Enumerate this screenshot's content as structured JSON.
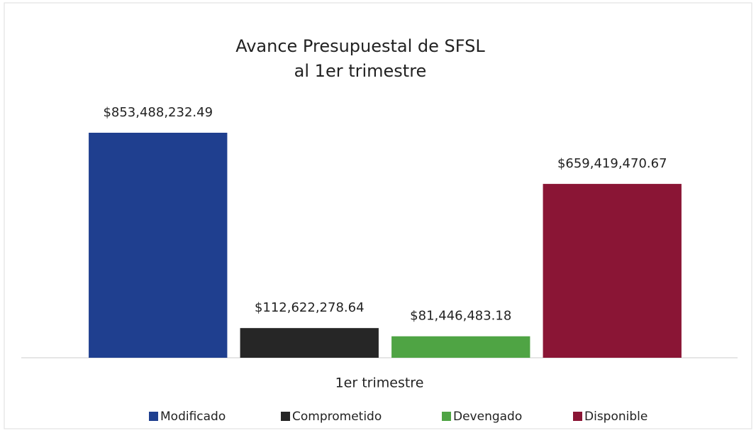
{
  "chart_data": {
    "type": "bar",
    "title": [
      "Avance Presupuestal de SFSL",
      "al 1er trimestre"
    ],
    "categories": [
      "1er trimestre"
    ],
    "series": [
      {
        "name": "Modificado",
        "color": "#1f3f8f",
        "values": [
          853488232.49
        ],
        "value_labels": [
          "$853,488,232.49"
        ]
      },
      {
        "name": "Comprometido",
        "color": "#262626",
        "values": [
          112622278.64
        ],
        "value_labels": [
          "$112,622,278.64"
        ]
      },
      {
        "name": "Devengado",
        "color": "#4fa444",
        "values": [
          81446483.18
        ],
        "value_labels": [
          "$81,446,483.18"
        ]
      },
      {
        "name": "Disponible",
        "color": "#8a1535",
        "values": [
          659419470.67
        ],
        "value_labels": [
          "$659,419,470.67"
        ]
      }
    ]
  }
}
